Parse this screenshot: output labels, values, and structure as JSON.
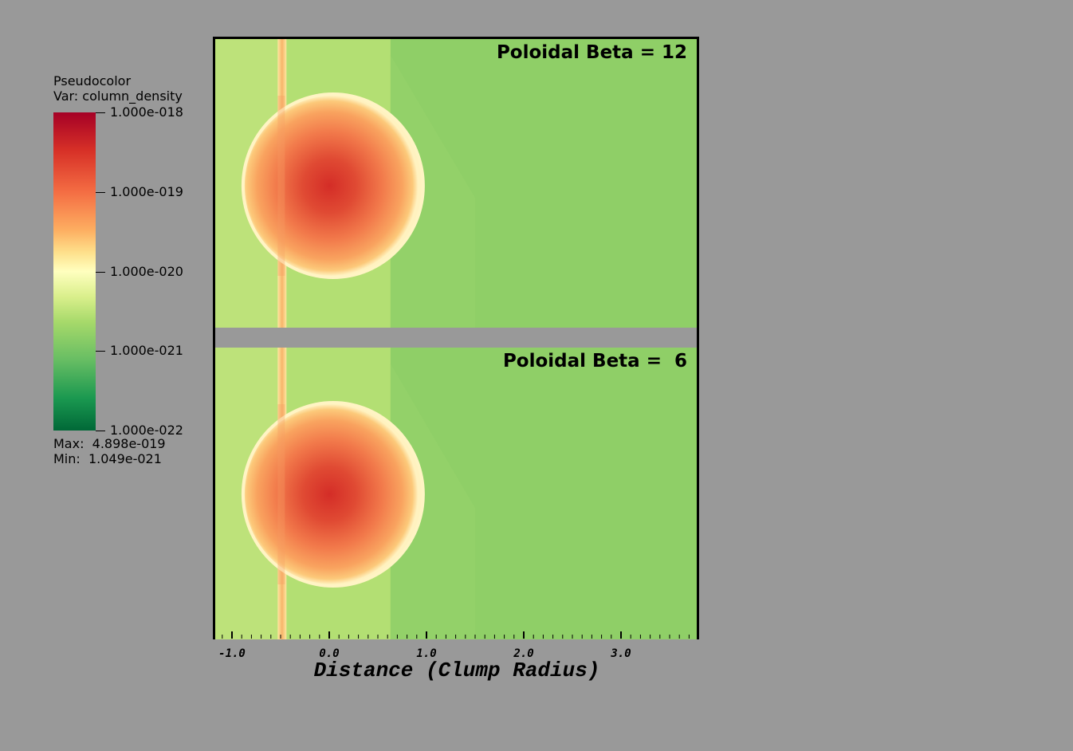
{
  "chart_data": {
    "type": "heatmap",
    "colormap": "RdYlGn reversed (green = low, red = high)",
    "legend": {
      "title_line1": "Pseudocolor",
      "title_line2": "Var: column_density",
      "tick_labels": [
        "1.000e-018",
        "1.000e-019",
        "1.000e-020",
        "1.000e-021",
        "1.000e-022"
      ],
      "tick_values": [
        1e-18,
        1e-19,
        1e-20,
        1e-21,
        1e-22
      ],
      "scale": "log",
      "max_label": "Max:  4.898e-019",
      "min_label": "Min:  1.049e-021",
      "max_value": 4.898e-19,
      "min_value": 1.049e-21,
      "placement": "left"
    },
    "panels": [
      {
        "title": "Poloidal Beta = 12"
      },
      {
        "title": "Poloidal Beta =  6"
      }
    ],
    "xlabel": "Distance (Clump Radius)",
    "xtick_labels": [
      "-1.0",
      "0.0",
      "1.0",
      "2.0",
      "3.0"
    ],
    "xticks": [
      -1.0,
      0.0,
      1.0,
      2.0,
      3.0
    ],
    "xlim": [
      -1.2,
      3.8
    ],
    "colors": {
      "background": "#999999",
      "clump_core": "#d42d27",
      "ambient_left": "#bde27a",
      "ambient_mid": "#b3df73",
      "ambient_right": "#8fcf67"
    }
  }
}
